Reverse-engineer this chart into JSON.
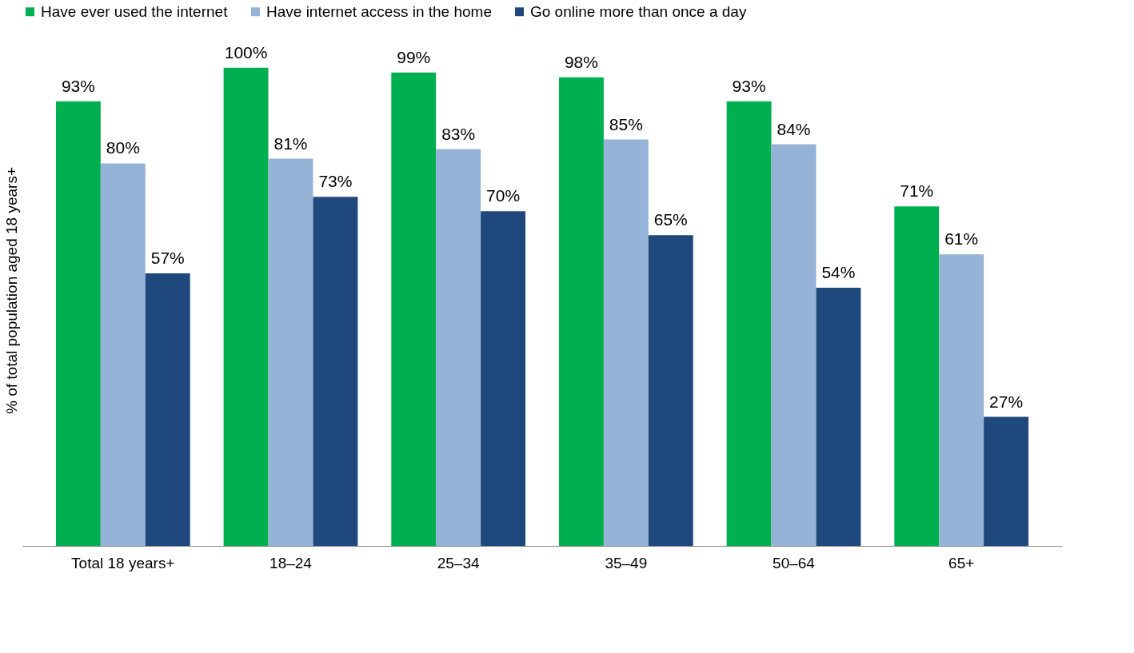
{
  "chart_data": {
    "type": "bar",
    "ylabel": "% of total population aged 18 years+",
    "categories": [
      "Total 18 years+",
      "18–24",
      "25–34",
      "35–49",
      "50–64",
      "65+"
    ],
    "series": [
      {
        "name": "Have ever used the internet",
        "color": "#00b050",
        "values": [
          93,
          100,
          99,
          98,
          93,
          71
        ],
        "value_labels": [
          "93%",
          "100%",
          "99%",
          "98%",
          "93%",
          "71%"
        ]
      },
      {
        "name": "Have internet access in the home",
        "color": "#95b3d7",
        "values": [
          80,
          81,
          83,
          85,
          84,
          61
        ],
        "value_labels": [
          "80%",
          "81%",
          "83%",
          "85%",
          "84%",
          "61%"
        ]
      },
      {
        "name": "Go online more than once a day",
        "color": "#1f497d",
        "values": [
          57,
          73,
          70,
          65,
          54,
          27
        ],
        "value_labels": [
          "57%",
          "73%",
          "70%",
          "65%",
          "54%",
          "27%"
        ]
      }
    ],
    "legend": "top left",
    "grid": false
  }
}
